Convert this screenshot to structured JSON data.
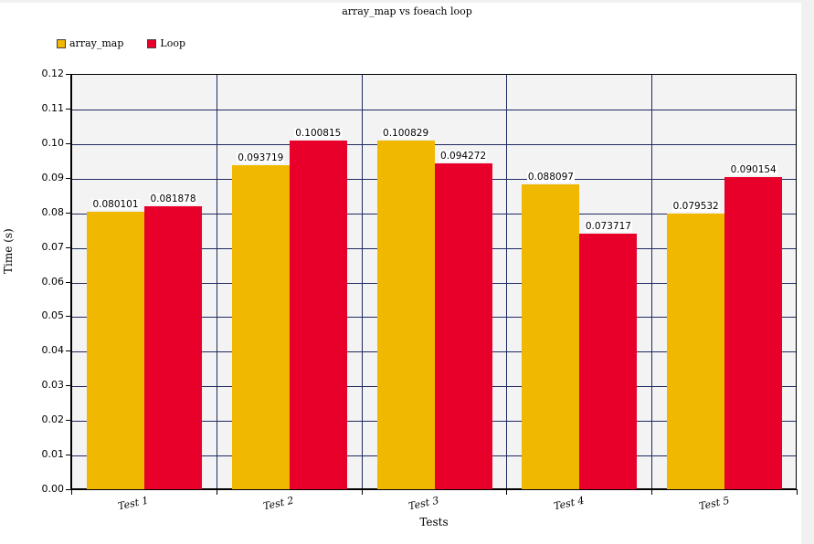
{
  "chart_data": {
    "type": "bar",
    "title": "array_map vs foeach loop",
    "xlabel": "Tests",
    "ylabel": "Time (s)",
    "categories": [
      "Test 1",
      "Test 2",
      "Test 3",
      "Test 4",
      "Test 5"
    ],
    "series": [
      {
        "name": "array_map",
        "color": "#f0b800",
        "values": [
          0.080101,
          0.093719,
          0.100829,
          0.088097,
          0.079532
        ],
        "labels": [
          "0.080101",
          "0.093719",
          "0.100829",
          "0.088097",
          "0.079532"
        ]
      },
      {
        "name": "Loop",
        "color": "#e8002a",
        "values": [
          0.081878,
          0.100815,
          0.094272,
          0.073717,
          0.090154
        ],
        "labels": [
          "0.081878",
          "0.100815",
          "0.094272",
          "0.073717",
          "0.090154"
        ]
      }
    ],
    "ylim": [
      0,
      0.12
    ],
    "yticks": [
      "0.00",
      "0.01",
      "0.02",
      "0.03",
      "0.04",
      "0.05",
      "0.06",
      "0.07",
      "0.08",
      "0.09",
      "0.10",
      "0.11",
      "0.12"
    ],
    "grid": true,
    "legend_position": "top-left"
  }
}
